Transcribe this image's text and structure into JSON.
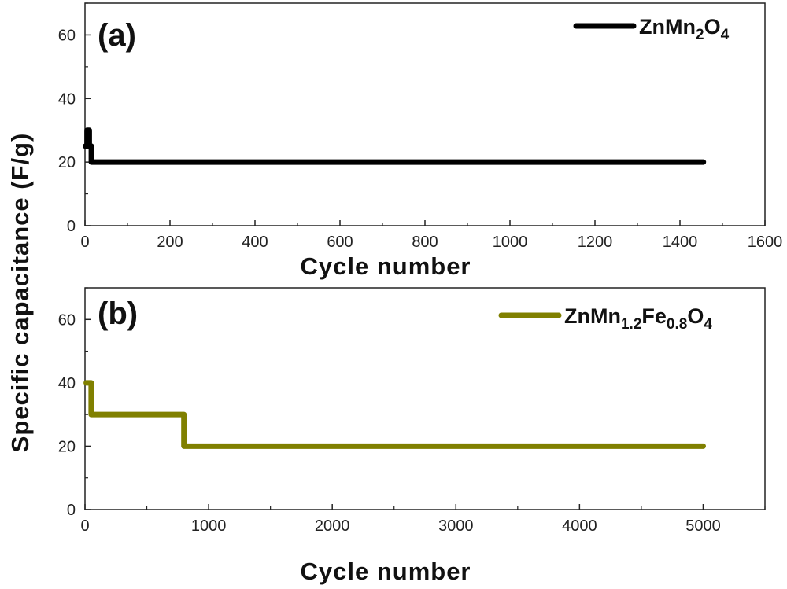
{
  "shared_ylabel": "Specific capacitance (F/g)",
  "chart_data": [
    {
      "type": "line",
      "panel": "(a)",
      "xlabel": "Cycle number",
      "ylabel": "Specific capacitance (F/g)",
      "xlim": [
        0,
        1600
      ],
      "ylim": [
        0,
        70
      ],
      "xticks": [
        0,
        200,
        400,
        600,
        800,
        1000,
        1200,
        1400,
        1600
      ],
      "yticks": [
        0,
        20,
        40,
        60
      ],
      "grid": false,
      "legend_position": "top-right",
      "series": [
        {
          "name": "ZnMn2O4",
          "legend": {
            "base": "ZnMn",
            "parts": [
              {
                "t": "2",
                "sub": true
              },
              {
                "t": "O",
                "sub": false
              },
              {
                "t": "4",
                "sub": true
              }
            ]
          },
          "color": "#000000",
          "x": [
            1,
            5,
            5,
            10,
            10,
            15,
            15,
            1455
          ],
          "y": [
            25,
            25,
            30,
            30,
            25,
            25,
            20,
            20
          ]
        }
      ]
    },
    {
      "type": "line",
      "panel": "(b)",
      "xlabel": "Cycle number",
      "ylabel": "Specific capacitance (F/g)",
      "xlim": [
        0,
        5500
      ],
      "ylim": [
        0,
        70
      ],
      "xticks": [
        0,
        1000,
        2000,
        3000,
        4000,
        5000
      ],
      "yticks": [
        0,
        20,
        40,
        60
      ],
      "grid": false,
      "legend_position": "top-right",
      "series": [
        {
          "name": "ZnMn1.2Fe0.8O4",
          "legend": {
            "base": "ZnMn",
            "parts": [
              {
                "t": "1.2",
                "sub": true
              },
              {
                "t": "Fe",
                "sub": false
              },
              {
                "t": "0.8",
                "sub": true
              },
              {
                "t": "O",
                "sub": false
              },
              {
                "t": "4",
                "sub": true
              }
            ]
          },
          "color": "#808000",
          "x": [
            10,
            50,
            50,
            800,
            800,
            5000
          ],
          "y": [
            40,
            40,
            30,
            30,
            20,
            20
          ]
        }
      ]
    }
  ]
}
